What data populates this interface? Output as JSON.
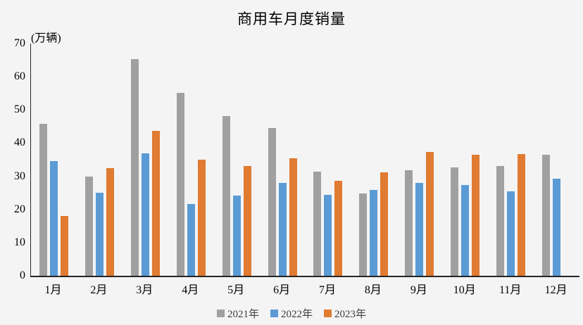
{
  "title": "商用车月度销量",
  "unit_label": "(万辆)",
  "colors": {
    "background": "#F4F4F5",
    "axis": "#262626",
    "series_2021": "#A0A0A0",
    "series_2022": "#5B9BD5",
    "series_2023": "#E07B31",
    "legend_text": "#3F3F3F"
  },
  "chart_data": {
    "type": "bar",
    "title": "商用车月度销量",
    "ylabel": "(万辆)",
    "xlabel": "",
    "categories": [
      "1月",
      "2月",
      "3月",
      "4月",
      "5月",
      "6月",
      "7月",
      "8月",
      "9月",
      "10月",
      "11月",
      "12月"
    ],
    "series": [
      {
        "name": "2021年",
        "color": "#A0A0A0",
        "values": [
          45.9,
          29.9,
          65.4,
          55.1,
          48.2,
          44.6,
          31.3,
          24.8,
          31.8,
          32.6,
          33.0,
          36.4
        ]
      },
      {
        "name": "2022年",
        "color": "#5B9BD5",
        "values": [
          34.5,
          25.0,
          37.0,
          21.7,
          24.1,
          28.1,
          24.5,
          25.9,
          27.9,
          27.4,
          25.5,
          29.3
        ]
      },
      {
        "name": "2023年",
        "color": "#E07B31",
        "values": [
          18.0,
          32.4,
          43.6,
          35.0,
          33.1,
          35.5,
          28.7,
          31.1,
          37.3,
          36.5,
          36.6,
          null
        ]
      }
    ],
    "ylim": [
      0,
      70
    ],
    "yticks": [
      0,
      10,
      20,
      30,
      40,
      50,
      60,
      70
    ],
    "grid": false,
    "legend_position": "bottom"
  }
}
